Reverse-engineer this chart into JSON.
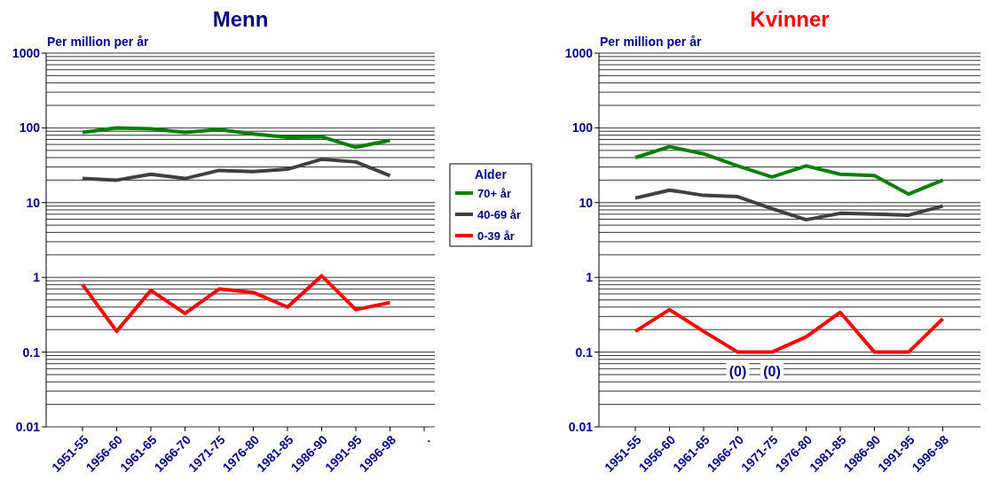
{
  "chart_data": [
    {
      "type": "line",
      "title": "Menn",
      "ylabel": "Per million per år",
      "categories": [
        "1951-55",
        "1956-60",
        "1961-65",
        "1966-70",
        "1971-75",
        "1976-80",
        "1981-85",
        "1986-90",
        "1991-95",
        "1996-98",
        "."
      ],
      "log": "y",
      "ylim": [
        0.01,
        1000
      ],
      "yticks": [
        0.01,
        0.1,
        1,
        10,
        100,
        1000
      ],
      "grid": "y",
      "legend": "right",
      "legend_title": "Alder",
      "line_style": "solid",
      "marker": "none",
      "series": [
        {
          "name": "70+ år",
          "color": "#008000",
          "values": [
            87,
            100,
            97,
            87,
            95,
            83,
            75,
            76,
            55,
            68,
            null
          ]
        },
        {
          "name": "40-69 år",
          "color": "#404040",
          "values": [
            21,
            20,
            24,
            21,
            27,
            26,
            28,
            38,
            35,
            23,
            null
          ]
        },
        {
          "name": "0-39 år",
          "color": "#ff0000",
          "values": [
            0.8,
            0.19,
            0.67,
            0.33,
            0.7,
            0.63,
            0.4,
            1.05,
            0.37,
            0.46,
            null
          ]
        }
      ]
    },
    {
      "type": "line",
      "title": "Kvinner",
      "ylabel": "Per million per år",
      "categories": [
        "1951-55",
        "1956-60",
        "1961-65",
        "1966-70",
        "1971-75",
        "1976-80",
        "1981-85",
        "1986-90",
        "1991-95",
        "1996-98"
      ],
      "log": "y",
      "ylim": [
        0.01,
        1000
      ],
      "yticks": [
        0.01,
        0.1,
        1,
        10,
        100,
        1000
      ],
      "grid": "y",
      "line_style": "solid",
      "marker": "none",
      "annotations": [
        {
          "text": "(0)",
          "x": "1966-70",
          "y": 0.1
        },
        {
          "text": "(0)",
          "x": "1971-75",
          "y": 0.1
        }
      ],
      "series": [
        {
          "color": "#008000",
          "values": [
            40,
            56,
            45,
            31,
            22,
            31,
            24,
            23,
            13,
            20
          ]
        },
        {
          "color": "#404040",
          "values": [
            11.5,
            14.7,
            12.5,
            12,
            8.3,
            5.9,
            7.2,
            7,
            6.8,
            9
          ]
        },
        {
          "color": "#ff0000",
          "values": [
            0.19,
            0.37,
            0.19,
            0.1,
            0.1,
            0.16,
            0.34,
            0.1,
            0.1,
            0.28
          ]
        }
      ]
    }
  ]
}
